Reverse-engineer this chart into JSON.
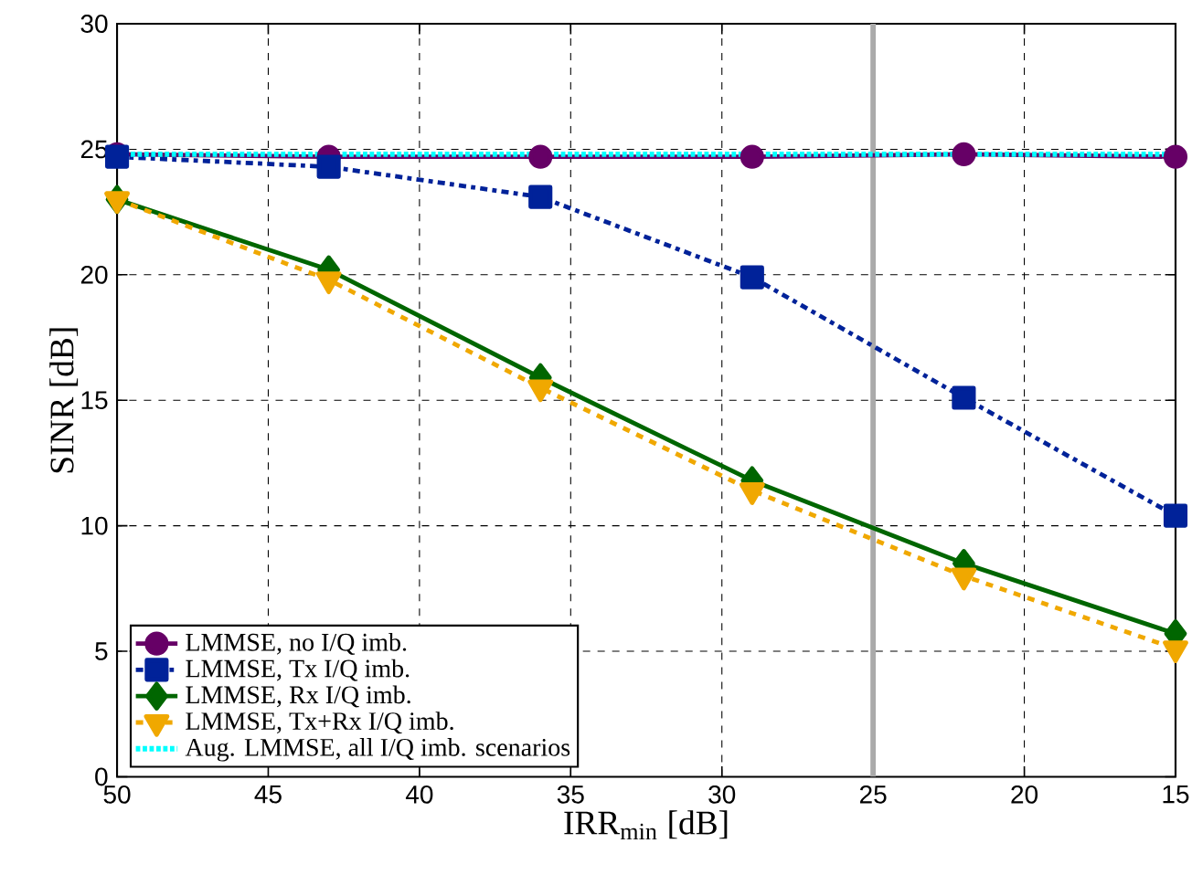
{
  "chart_data": {
    "type": "line",
    "xlabel": "IRR$_{min}$ [dB]",
    "ylabel": "SINR [dB]",
    "x": [
      50,
      43,
      36,
      29,
      22,
      15
    ],
    "series": [
      {
        "name": "LMMSE, no I/Q imb.",
        "color": "#660066",
        "marker": "circle",
        "line_style": "solid",
        "values": [
          24.8,
          24.7,
          24.7,
          24.7,
          24.8,
          24.7
        ]
      },
      {
        "name": "LMMSE, Tx I/Q imb.",
        "color": "#002299",
        "marker": "square",
        "line_style": "dashdot",
        "values": [
          24.7,
          24.3,
          23.1,
          19.9,
          15.1,
          10.4
        ]
      },
      {
        "name": "LMMSE, Rx I/Q imb.",
        "color": "#006600",
        "marker": "diamond",
        "line_style": "solid",
        "values": [
          23.0,
          20.2,
          15.9,
          11.8,
          8.5,
          5.7
        ]
      },
      {
        "name": "LMMSE, Tx+Rx I/Q imb.",
        "color": "#f0a800",
        "marker": "triangle",
        "line_style": "dashed",
        "values": [
          23.0,
          19.8,
          15.5,
          11.4,
          8.0,
          5.1
        ]
      },
      {
        "name": "Aug. LMMSE, all I/Q imb. scenarios",
        "color": "#00ffff",
        "marker": "none",
        "line_style": "dotted",
        "values": [
          24.8,
          24.8,
          24.8,
          24.8,
          24.8,
          24.8
        ]
      }
    ],
    "xlim": [
      50,
      15
    ],
    "ylim": [
      0,
      30
    ],
    "xticks": [
      50,
      45,
      40,
      35,
      30,
      25,
      20,
      15
    ],
    "yticks": [
      0,
      5,
      10,
      15,
      20,
      25,
      30
    ],
    "ref_lines": [
      {
        "axis": "x",
        "value": 25,
        "color": "#aaaaaa"
      }
    ],
    "grid": true,
    "legend": "bottom left"
  }
}
